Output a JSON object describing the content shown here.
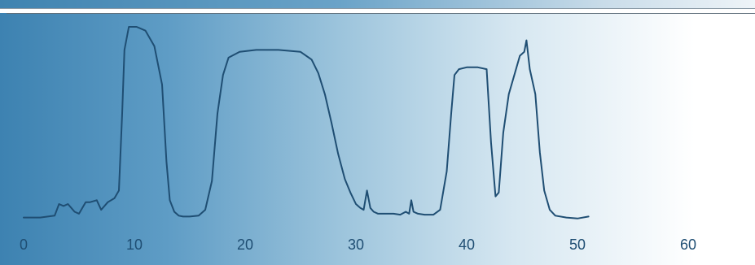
{
  "chart_data": {
    "type": "line",
    "title": "",
    "xlabel": "",
    "ylabel": "",
    "xlim": [
      0,
      60
    ],
    "ylim": [
      0,
      100
    ],
    "grid": false,
    "x_ticks": [
      0,
      10,
      20,
      30,
      40,
      50,
      60
    ],
    "x_tick_labels": [
      "0",
      "10",
      "20",
      "30",
      "40",
      "50",
      "60"
    ],
    "colors": {
      "line": "#1f4e73",
      "tick_text": "#1f4e73"
    },
    "series": [
      {
        "x": [
          0,
          1.5,
          2.8,
          3.2,
          3.6,
          4.0,
          4.6,
          5.0,
          5.6,
          6.0,
          6.6,
          7.0,
          7.6,
          8.2,
          8.6,
          8.9,
          9.1,
          9.5,
          10.2,
          11.0,
          11.8,
          12.5,
          12.9,
          13.2,
          13.6,
          14.0,
          14.4,
          15.0,
          15.8,
          16.4,
          17.0,
          17.5,
          18.0,
          18.5,
          19.5,
          21.0,
          23.0,
          25.0,
          26.0,
          26.6,
          27.2,
          27.8,
          28.4,
          29.0,
          29.5,
          30.0,
          30.4,
          30.7,
          31.0,
          31.3,
          31.6,
          32.0,
          32.6,
          33.4,
          34.0,
          34.5,
          34.8,
          35.0,
          35.2,
          35.6,
          36.2,
          37.0,
          37.6,
          38.2,
          38.6,
          38.9,
          39.3,
          40.0,
          41.0,
          41.8,
          42.2,
          42.6,
          42.9,
          43.3,
          43.8,
          44.3,
          44.8,
          45.2,
          45.4,
          45.7,
          46.2,
          46.6,
          47.0,
          47.5,
          48.0,
          49.0,
          50.0,
          51.0
        ],
        "y": [
          1,
          1,
          2,
          8,
          7,
          8,
          4,
          3,
          9,
          9,
          10,
          5,
          9,
          11,
          15,
          55,
          88,
          100,
          100,
          98,
          90,
          70,
          30,
          10,
          4,
          2,
          1.5,
          1.5,
          2,
          5,
          20,
          55,
          75,
          84,
          87,
          88,
          88,
          87,
          83,
          76,
          65,
          50,
          34,
          21,
          14,
          8,
          6,
          5,
          15,
          6,
          4,
          3,
          3,
          3,
          2.5,
          4,
          3,
          10,
          4,
          3,
          2.5,
          2.5,
          5,
          25,
          55,
          75,
          78,
          79,
          79,
          78,
          40,
          12,
          14,
          45,
          65,
          75,
          85,
          87,
          93,
          78,
          65,
          35,
          15,
          5,
          2,
          1,
          0.5,
          1.5
        ]
      }
    ]
  }
}
